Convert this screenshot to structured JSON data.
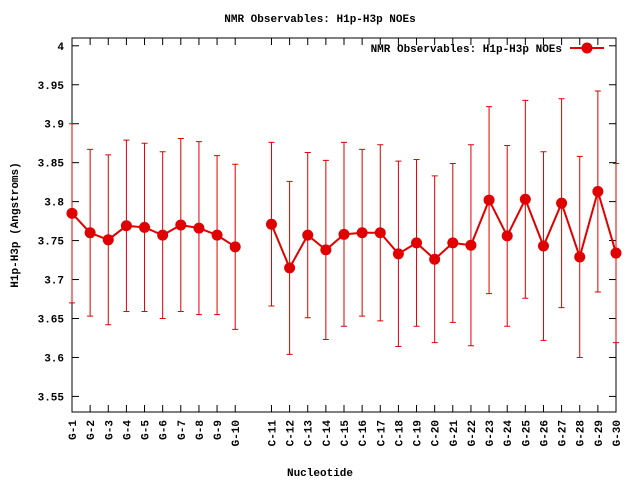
{
  "chart_data": {
    "type": "line",
    "title": "NMR Observables: H1p-H3p NOEs",
    "x_label": "Nucleotide",
    "y_label": "H1p-H3p (Angstroms)",
    "categories": [
      "G-1",
      "G-2",
      "G-3",
      "G-4",
      "G-5",
      "G-6",
      "G-7",
      "G-8",
      "G-9",
      "G-10",
      null,
      "C-11",
      "C-12",
      "C-13",
      "C-14",
      "C-15",
      "C-16",
      "C-17",
      "C-18",
      "C-19",
      "C-20",
      "G-21",
      "G-22",
      "G-23",
      "G-24",
      "G-25",
      "G-26",
      "G-27",
      "G-28",
      "G-29",
      "G-30"
    ],
    "series": [
      {
        "name": "NMR Observables: H1p-H3p NOEs",
        "color": "#e00000",
        "values": [
          3.785,
          3.76,
          3.751,
          3.769,
          3.767,
          3.757,
          3.77,
          3.766,
          3.757,
          3.742,
          null,
          3.771,
          3.715,
          3.757,
          3.738,
          3.758,
          3.76,
          3.76,
          3.733,
          3.747,
          3.726,
          3.747,
          3.744,
          3.802,
          3.756,
          3.803,
          3.743,
          3.798,
          3.729,
          3.813,
          3.734
        ],
        "errors": [
          0.115,
          0.107,
          0.109,
          0.11,
          0.108,
          0.107,
          0.111,
          0.111,
          0.102,
          0.106,
          null,
          0.105,
          0.111,
          0.106,
          0.115,
          0.118,
          0.107,
          0.113,
          0.119,
          0.107,
          0.107,
          0.102,
          0.129,
          0.12,
          0.116,
          0.127,
          0.121,
          0.134,
          0.129,
          0.129,
          0.115
        ]
      }
    ],
    "ylim": [
      3.53,
      4.01
    ],
    "yticks": [
      3.55,
      3.6,
      3.65,
      3.7,
      3.75,
      3.8,
      3.85,
      3.9,
      3.95,
      4
    ],
    "legend": "top-right",
    "grid": false
  }
}
